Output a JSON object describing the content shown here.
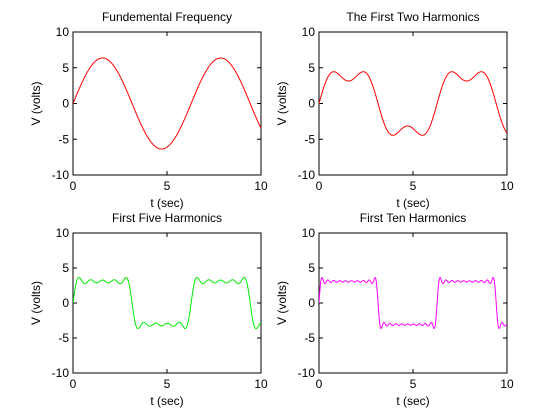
{
  "chart_data": [
    {
      "type": "line",
      "title": "Fundemental Frequency",
      "xlabel": "t (sec)",
      "ylabel": "V (volts)",
      "xlim": [
        0,
        10
      ],
      "ylim": [
        -10,
        10
      ],
      "xticks": [
        0,
        5,
        10
      ],
      "yticks": [
        -10,
        -5,
        0,
        5,
        10
      ],
      "grid": false,
      "series": [
        {
          "color": "#ff0000",
          "harmonics": 1,
          "peak_amplitude": 6.37,
          "x": [
            0,
            0.5,
            1,
            1.5,
            2,
            2.5,
            3,
            3.5,
            4,
            4.5,
            5,
            5.5,
            6,
            6.5,
            7,
            7.5,
            8,
            8.5,
            9,
            9.5,
            10
          ],
          "y": [
            0,
            3.05,
            5.36,
            6.35,
            5.79,
            3.82,
            0.9,
            -2.2,
            -4.82,
            -6.22,
            -6.11,
            -4.49,
            -1.78,
            1.4,
            4.19,
            5.97,
            6.3,
            5.06,
            2.6,
            -0.54,
            -3.47
          ]
        }
      ]
    },
    {
      "type": "line",
      "title": "The First Two Harmonics",
      "xlabel": "t (sec)",
      "ylabel": "V (volts)",
      "xlim": [
        0,
        10
      ],
      "ylim": [
        -10,
        10
      ],
      "xticks": [
        0,
        5,
        10
      ],
      "yticks": [
        -10,
        -5,
        0,
        5,
        10
      ],
      "grid": false,
      "series": [
        {
          "color": "#ff0000",
          "harmonics": 2,
          "peak_amplitude": 6.0,
          "x": [
            0,
            0.5,
            1,
            1.5,
            2,
            2.5,
            3,
            3.5,
            4,
            4.5,
            5,
            5.5,
            6,
            6.5,
            7,
            7.5,
            8,
            8.5,
            9,
            9.5,
            10
          ],
          "y": [
            0,
            5.1,
            5.9,
            4.2,
            5.5,
            5.6,
            1.1,
            -4.2,
            -5.7,
            -4.3,
            -5.0,
            -6.0,
            -2.0,
            3.9,
            6.0,
            4.4,
            5.0,
            5.9,
            2.5,
            -3.5,
            -5.4
          ]
        }
      ]
    },
    {
      "type": "line",
      "title": "First Five Harmonics",
      "xlabel": "t (sec)",
      "ylabel": "V (volts)",
      "xlim": [
        0,
        10
      ],
      "ylim": [
        -10,
        10
      ],
      "xticks": [
        0,
        5,
        10
      ],
      "yticks": [
        -10,
        -5,
        0,
        5,
        10
      ],
      "grid": false,
      "series": [
        {
          "color": "#00ee00",
          "harmonics": 5,
          "peak_amplitude": 5.0,
          "x": [
            0,
            0.5,
            1,
            1.5,
            2,
            2.5,
            3,
            3.5,
            4,
            4.5,
            5,
            5.5,
            6,
            6.5,
            7,
            7.5,
            8,
            8.5,
            9,
            9.5,
            10
          ],
          "y": [
            0,
            5.5,
            5.0,
            5.3,
            4.9,
            5.5,
            2.5,
            -5.3,
            -5.0,
            -5.3,
            -4.9,
            -5.5,
            -3.5,
            5.0,
            5.1,
            5.2,
            5.0,
            5.4,
            0.8,
            -5.8,
            -4.6
          ]
        }
      ]
    },
    {
      "type": "line",
      "title": "First Ten Harmonics",
      "xlabel": "t (sec)",
      "ylabel": "V (volts)",
      "xlim": [
        0,
        10
      ],
      "ylim": [
        -10,
        10
      ],
      "xticks": [
        0,
        5,
        10
      ],
      "yticks": [
        -10,
        -5,
        0,
        5,
        10
      ],
      "grid": false,
      "series": [
        {
          "color": "#ff00ff",
          "harmonics": 10,
          "peak_amplitude": 5.0,
          "x": [
            0,
            0.5,
            1,
            1.5,
            2,
            2.5,
            3,
            3.5,
            4,
            4.5,
            5,
            5.5,
            6,
            6.5,
            7,
            7.5,
            8,
            8.5,
            9,
            9.5,
            10
          ],
          "y": [
            0,
            5.2,
            5.1,
            5.2,
            5.0,
            5.3,
            4.0,
            -5.2,
            -5.0,
            -5.1,
            -5.0,
            -5.3,
            -4.8,
            5.1,
            5.0,
            5.2,
            5.0,
            5.2,
            2.0,
            -5.6,
            -4.8
          ]
        }
      ]
    }
  ]
}
